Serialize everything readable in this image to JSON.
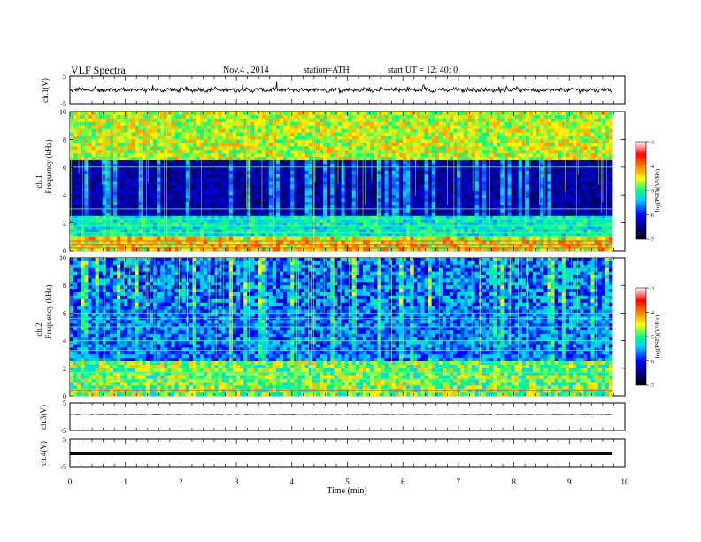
{
  "header": {
    "title": "VLF  Spectra",
    "date": "Nov.4  , 2014",
    "station": "station=ATH",
    "start": "start  UT  =   12: 40: 0"
  },
  "chart_data": [
    {
      "type": "line",
      "ylabel": "ch.1(V)",
      "ylim": [
        -5,
        5
      ],
      "yticks": [
        "5",
        "-5"
      ],
      "xlim": [
        0,
        10
      ],
      "description_values": {
        "baseline": 0,
        "amplitude": 0.7
      }
    },
    {
      "type": "heatmap",
      "ylabel_lines": [
        "ch.1",
        "Frequency  (kHz)"
      ],
      "ylim": [
        0,
        10
      ],
      "yticks": [
        "0",
        "2",
        "4",
        "6",
        "8",
        "10"
      ],
      "xlim": [
        0,
        10
      ],
      "colorbar": {
        "label": "log(PSD)(V²/Hz)",
        "ticks": [
          "-3",
          "-4",
          "-5",
          "-6",
          "-7"
        ],
        "range": [
          -7,
          -3
        ]
      },
      "colormap": [
        "#000000",
        "#000070",
        "#0000ff",
        "#00d0ff",
        "#00ff80",
        "#ffff00",
        "#ff8000",
        "#ff0000",
        "#ffffff"
      ]
    },
    {
      "type": "heatmap",
      "ylabel_lines": [
        "ch.2",
        "Frequency  (kHz)"
      ],
      "ylim": [
        0,
        10
      ],
      "yticks": [
        "0",
        "2",
        "4",
        "6",
        "8",
        "10"
      ],
      "xlim": [
        0,
        10
      ],
      "colorbar": {
        "label": "log(PSD)(V²/Hz)",
        "ticks": [
          "-3",
          "-4",
          "-5",
          "-6",
          "-7"
        ],
        "range": [
          -7,
          -3
        ]
      }
    },
    {
      "type": "line",
      "ylabel": "ch.3(V)",
      "ylim": [
        -5,
        5
      ],
      "yticks": [
        "5",
        "-5"
      ],
      "xlim": [
        0,
        10
      ],
      "description_values": {
        "baseline": 0,
        "amplitude": 0.05
      }
    },
    {
      "type": "line",
      "ylabel": "ch.4(V)",
      "ylim": [
        -5,
        5
      ],
      "yticks": [
        "5",
        "-5"
      ],
      "xlim": [
        0,
        10
      ],
      "xlabel": "Time  (min)",
      "xticks": [
        "0",
        "1",
        "2",
        "3",
        "4",
        "5",
        "6",
        "7",
        "8",
        "9",
        "10"
      ],
      "description_values": {
        "baseline": 0,
        "amplitude": 0
      }
    }
  ]
}
